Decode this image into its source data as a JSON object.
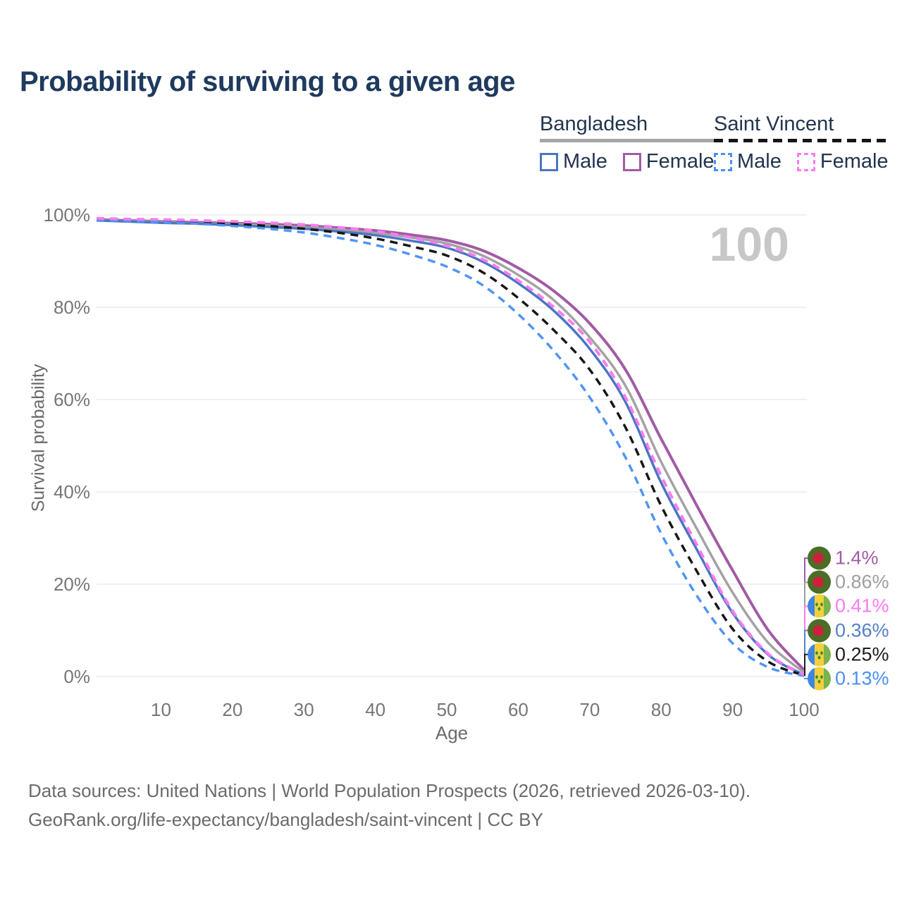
{
  "title": "Probability of surviving to a given age",
  "legend": {
    "groups": [
      {
        "name": "Bangladesh",
        "line_style": "solid",
        "underline_color": "#a6a6a6",
        "items": [
          {
            "label": "Male",
            "color": "#4a75c4",
            "box_style": "solid"
          },
          {
            "label": "Female",
            "color": "#a25ba5",
            "box_style": "solid"
          }
        ]
      },
      {
        "name": "Saint Vincent",
        "line_style": "dashed",
        "underline_color": "#151515",
        "items": [
          {
            "label": "Male",
            "color": "#4a90f5",
            "box_style": "dashed"
          },
          {
            "label": "Female",
            "color": "#fb7bf1",
            "box_style": "dashed"
          }
        ]
      }
    ]
  },
  "chart_data": {
    "type": "line",
    "title": "Probability of surviving to a given age",
    "xlabel": "Age",
    "ylabel": "Survival probability",
    "xlim": [
      1,
      100
    ],
    "ylim": [
      0,
      100
    ],
    "grid": "horizontal-only",
    "watermark": "100",
    "x_ticks": [
      10,
      20,
      30,
      40,
      50,
      60,
      70,
      80,
      90,
      100
    ],
    "y_ticks": [
      {
        "value": 0,
        "label": "0%"
      },
      {
        "value": 20,
        "label": "20%"
      },
      {
        "value": 40,
        "label": "40%"
      },
      {
        "value": 60,
        "label": "60%"
      },
      {
        "value": 80,
        "label": "80%"
      },
      {
        "value": 100,
        "label": "100%"
      }
    ],
    "x": [
      1,
      5,
      10,
      15,
      20,
      25,
      30,
      35,
      40,
      45,
      50,
      55,
      60,
      65,
      70,
      75,
      80,
      85,
      90,
      95,
      100
    ],
    "series": [
      {
        "key": "bd_female",
        "name": "Bangladesh Female",
        "color": "#a25ba5",
        "dash": false,
        "width": 4,
        "values": [
          99.0,
          98.8,
          98.6,
          98.4,
          98.2,
          98.0,
          97.7,
          97.2,
          96.6,
          95.7,
          94.5,
          92.3,
          88.5,
          83.5,
          76.5,
          66.5,
          51.5,
          37.0,
          23.0,
          10.0,
          1.4
        ]
      },
      {
        "key": "bd_total",
        "name": "Bangladesh Both sexes",
        "color": "#a3a3a3",
        "dash": false,
        "width": 3.5,
        "values": [
          98.9,
          98.7,
          98.5,
          98.2,
          98.0,
          97.7,
          97.3,
          96.8,
          96.1,
          95.1,
          93.8,
          91.2,
          87.0,
          81.5,
          73.5,
          63.0,
          46.5,
          32.0,
          18.2,
          7.3,
          0.86
        ]
      },
      {
        "key": "bd_male",
        "name": "Bangladesh Male",
        "color": "#4a75c4",
        "dash": false,
        "width": 3.5,
        "values": [
          98.8,
          98.6,
          98.3,
          98.1,
          97.8,
          97.4,
          97.0,
          96.4,
          95.6,
          94.4,
          92.9,
          89.9,
          85.2,
          79.2,
          71.0,
          59.5,
          42.0,
          27.5,
          13.8,
          4.7,
          0.36
        ]
      },
      {
        "key": "sv_total",
        "name": "Saint Vincent Both sexes",
        "color": "#161616",
        "dash": true,
        "width": 3.5,
        "values": [
          99.1,
          98.9,
          98.7,
          98.4,
          98.1,
          97.6,
          97.0,
          96.1,
          94.9,
          93.2,
          91.2,
          87.6,
          82.0,
          75.0,
          66.5,
          54.0,
          37.0,
          22.8,
          10.3,
          3.2,
          0.25
        ]
      },
      {
        "key": "sv_male",
        "name": "Saint Vincent Male",
        "color": "#4f95f7",
        "dash": true,
        "width": 3.5,
        "values": [
          98.9,
          98.7,
          98.4,
          98.1,
          97.6,
          97.0,
          96.2,
          95.0,
          93.5,
          91.4,
          88.8,
          84.8,
          78.5,
          70.5,
          60.5,
          47.5,
          31.0,
          17.5,
          7.2,
          2.0,
          0.13
        ]
      },
      {
        "key": "sv_female",
        "name": "Saint Vincent Female",
        "color": "#fb7bf1",
        "dash": true,
        "width": 4,
        "values": [
          99.3,
          99.1,
          99.0,
          98.8,
          98.6,
          98.3,
          97.9,
          97.3,
          96.5,
          95.1,
          93.3,
          90.4,
          85.8,
          80.0,
          72.5,
          60.5,
          43.5,
          28.5,
          14.2,
          4.9,
          0.41
        ]
      }
    ],
    "end_labels": [
      {
        "series_key": "bd_female",
        "label": "1.4%",
        "color": "#a25ba5",
        "flag": "bd"
      },
      {
        "series_key": "bd_total",
        "label": "0.86%",
        "color": "#9e9e9e",
        "flag": "bd"
      },
      {
        "series_key": "sv_female",
        "label": "0.41%",
        "color": "#fb7bf1",
        "flag": "sv"
      },
      {
        "series_key": "bd_male",
        "label": "0.36%",
        "color": "#5580c8",
        "flag": "bd"
      },
      {
        "series_key": "sv_total",
        "label": "0.25%",
        "color": "#1c1c1c",
        "flag": "sv"
      },
      {
        "series_key": "sv_male",
        "label": "0.13%",
        "color": "#4a90f5",
        "flag": "sv"
      }
    ],
    "legend_position": "top-right"
  },
  "flags": {
    "bd": {
      "name": "Bangladesh flag",
      "green": "#4a6e27",
      "red": "#d01f3c"
    },
    "sv": {
      "name": "Saint Vincent flag",
      "blue": "#3e86dd",
      "yellow": "#f5cf3a",
      "green": "#79b34a",
      "diamond": "#2f8f2f"
    }
  },
  "footer": {
    "line1": "Data sources: United Nations | World Population Prospects (2026, retrieved 2026-03-10).",
    "line2": "GeoRank.org/life-expectancy/bangladesh/saint-vincent | CC BY"
  }
}
